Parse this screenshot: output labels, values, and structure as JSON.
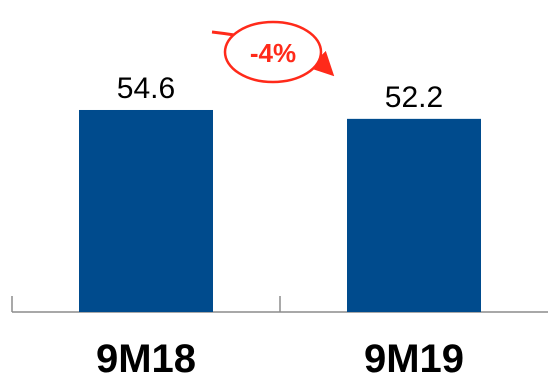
{
  "chart_data": {
    "type": "bar",
    "categories": [
      "9M18",
      "9M19"
    ],
    "values": [
      54.6,
      52.2
    ],
    "value_labels": [
      "54.6",
      "52.2"
    ],
    "title": "",
    "xlabel": "",
    "ylabel": "",
    "ylim": [
      0,
      60
    ],
    "grid": false,
    "bar_color": "#004B8D",
    "change_annotation": {
      "text": "-4%",
      "color": "#FF2A1A"
    }
  }
}
